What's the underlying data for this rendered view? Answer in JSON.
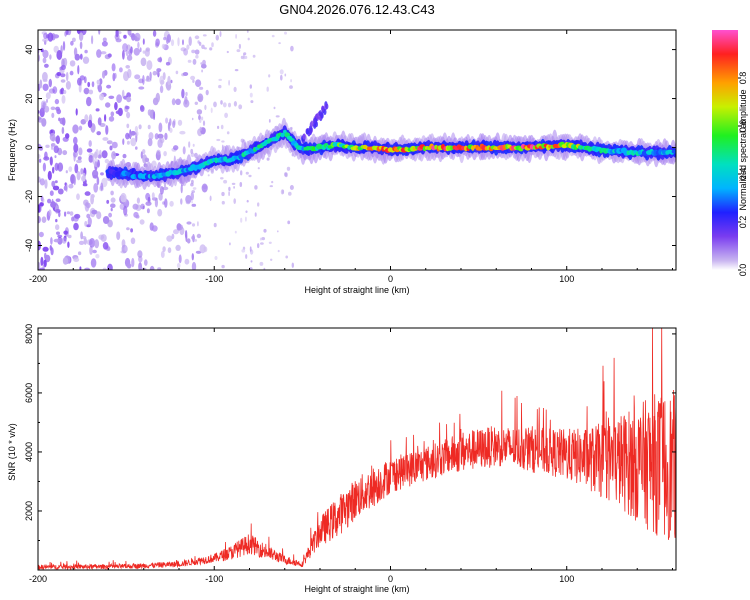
{
  "title": "GN04.2026.076.12.43.C43",
  "colors": {
    "snr_line": "#ee2a24",
    "axis": "#000000",
    "colormap": [
      "#ffffff",
      "#c8b4f0",
      "#7a3cf0",
      "#2020ff",
      "#00b4ff",
      "#00e0c0",
      "#20f020",
      "#c8f000",
      "#ffa000",
      "#ff2020",
      "#ff50d0"
    ]
  },
  "chart_data": [
    {
      "type": "heatmap",
      "name": "spectrogram",
      "xlabel": "Height of straight line (km)",
      "ylabel": "Frequency (Hz)",
      "xlim": [
        -200,
        162
      ],
      "ylim": [
        -50,
        48
      ],
      "xticks": [
        -200,
        -100,
        0,
        100
      ],
      "xticklabels": [
        "-200",
        "-100",
        "0",
        "100"
      ],
      "yticks": [
        -40,
        -20,
        0,
        20,
        40
      ],
      "yticklabels": [
        "-40",
        "-20",
        "0",
        "20",
        "40"
      ],
      "colorbar": {
        "label": "Normalized spectral amplitude",
        "range": [
          0,
          1
        ],
        "ticks": [
          0.0,
          0.2,
          0.4,
          0.6,
          0.8
        ],
        "ticklabels": [
          "0.0",
          "0.2",
          "0.4",
          "0.6",
          "0.8"
        ]
      },
      "ridge_frequency_hz": {
        "x": [
          -160,
          -150,
          -140,
          -130,
          -120,
          -110,
          -100,
          -90,
          -80,
          -70,
          -60,
          -50,
          -40,
          -30,
          -20,
          -10,
          0,
          20,
          40,
          60,
          80,
          100,
          110,
          120,
          140,
          160
        ],
        "y": [
          -10,
          -11,
          -12,
          -11,
          -10,
          -8,
          -5,
          -5,
          -2,
          2,
          6,
          -1,
          0,
          1,
          0,
          0,
          -1,
          0,
          0,
          0,
          0,
          1,
          0,
          -1,
          -2,
          -2
        ]
      },
      "ridge_amplitude": {
        "x": [
          -160,
          -130,
          -110,
          -90,
          -70,
          -50,
          -30,
          -10,
          0,
          20,
          40,
          60,
          80,
          100,
          120,
          140,
          160
        ],
        "y": [
          0.3,
          0.4,
          0.45,
          0.45,
          0.5,
          0.5,
          0.6,
          0.85,
          0.9,
          0.95,
          0.95,
          0.9,
          0.95,
          0.85,
          0.5,
          0.45,
          0.4
        ]
      },
      "noise_region_km": [
        -200,
        -115
      ]
    },
    {
      "type": "line",
      "name": "snr",
      "xlabel": "Height of straight line (km)",
      "ylabel": "SNR (10 * v/v)",
      "xlim": [
        -200,
        162
      ],
      "ylim": [
        0,
        8200
      ],
      "xticks": [
        -200,
        -100,
        0,
        100
      ],
      "xticklabels": [
        "-200",
        "-100",
        "0",
        "100"
      ],
      "yticks": [
        2000,
        4000,
        6000,
        8000
      ],
      "yticklabels": [
        "2000",
        "4000",
        "6000",
        "8000"
      ],
      "series": [
        {
          "name": "SNR",
          "x": [
            -200,
            -150,
            -120,
            -100,
            -90,
            -80,
            -70,
            -60,
            -50,
            -40,
            -30,
            -20,
            -10,
            0,
            10,
            20,
            30,
            40,
            50,
            60,
            70,
            80,
            90,
            100,
            110,
            120,
            130,
            140,
            150,
            160
          ],
          "values": [
            100,
            120,
            200,
            400,
            600,
            900,
            600,
            350,
            200,
            1300,
            1800,
            2400,
            2800,
            3200,
            3400,
            3600,
            3800,
            4000,
            4100,
            4200,
            4150,
            4100,
            4000,
            3900,
            3800,
            3700,
            3700,
            3600,
            3600,
            3500
          ],
          "spread": [
            80,
            80,
            100,
            150,
            250,
            350,
            250,
            150,
            100,
            500,
            700,
            700,
            700,
            600,
            600,
            600,
            600,
            700,
            700,
            700,
            700,
            800,
            800,
            900,
            1000,
            1300,
            1600,
            2000,
            2400,
            2600
          ]
        }
      ]
    }
  ]
}
